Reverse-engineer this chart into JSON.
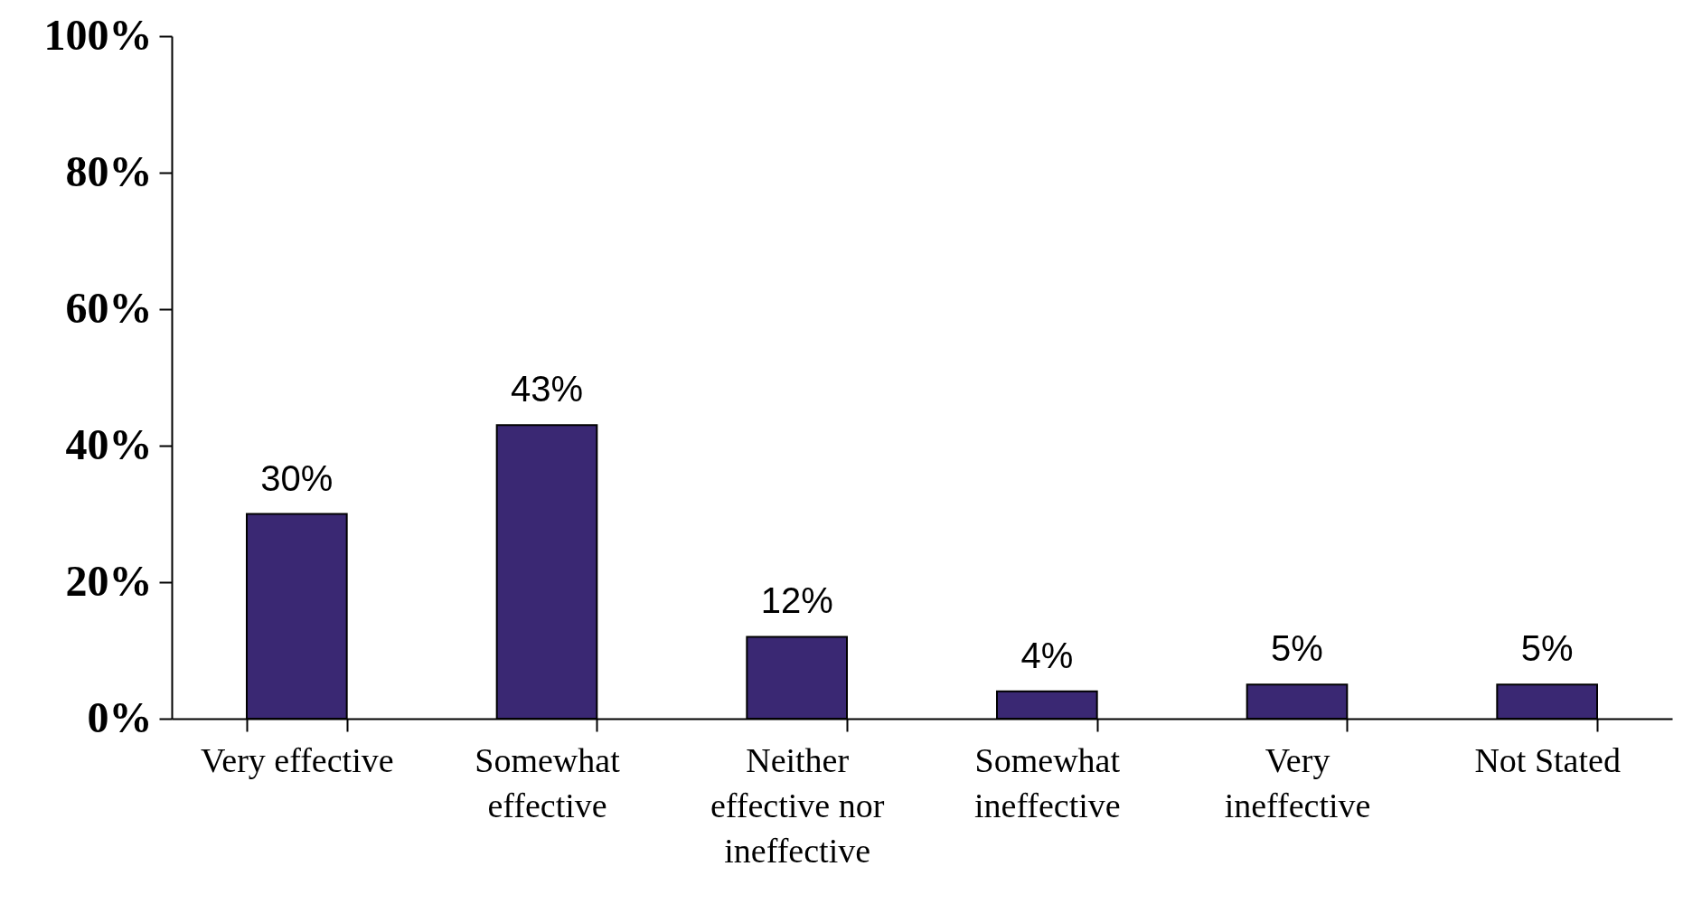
{
  "chart_data": {
    "type": "bar",
    "categories": [
      "Very effective",
      "Somewhat effective",
      "Neither effective nor ineffective",
      "Somewhat ineffective",
      "Very ineffective",
      "Not Stated"
    ],
    "values": [
      30,
      43,
      12,
      4,
      5,
      5
    ],
    "value_labels": [
      "30%",
      "43%",
      "12%",
      "4%",
      "5%",
      "5%"
    ],
    "color": "#3a2873",
    "ylim": [
      0,
      100
    ],
    "yticks": [
      {
        "value": 0,
        "label": "0%"
      },
      {
        "value": 20,
        "label": "20%"
      },
      {
        "value": 40,
        "label": "40%"
      },
      {
        "value": 60,
        "label": "60%"
      },
      {
        "value": 80,
        "label": "80%"
      },
      {
        "value": 100,
        "label": "100%"
      }
    ],
    "grid": false
  }
}
